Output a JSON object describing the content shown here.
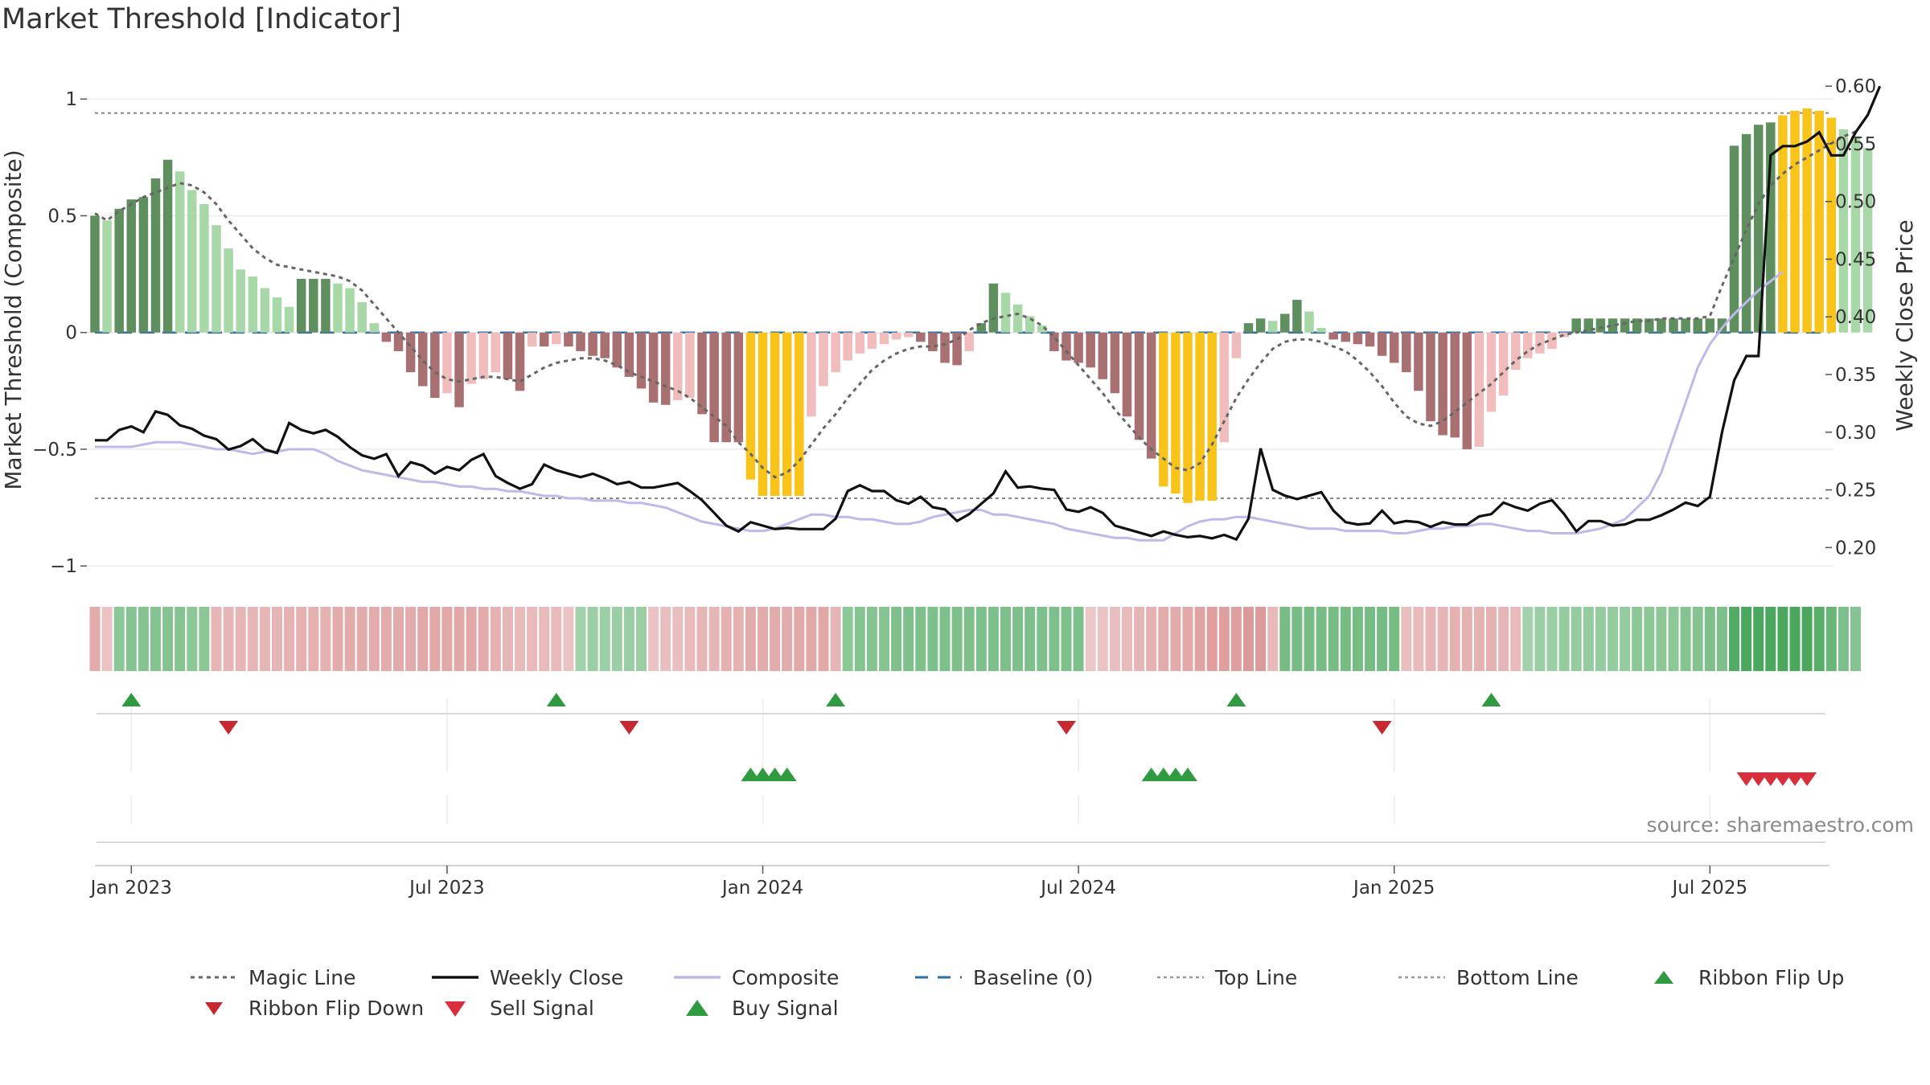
{
  "title": "Market Threshold [Indicator]",
  "source": "source: sharemaestro.com",
  "colors": {
    "strong_green": "#5f8f5f",
    "light_green": "#a8d8a8",
    "strong_red": "#a87070",
    "light_red": "#f0bcbc",
    "yellow": "#f8c41a",
    "weekly_close": "#111111",
    "composite": "#c0b8e8",
    "magic_line": "#666666",
    "baseline": "#2b6fa8",
    "signal_green": "#2f9a3f",
    "signal_red": "#d7303c"
  },
  "legend": [
    {
      "key": "magic",
      "label": "Magic Line",
      "icon": "dotted-line-icon"
    },
    {
      "key": "close",
      "label": "Weekly Close",
      "icon": "solid-line-icon"
    },
    {
      "key": "composite",
      "label": "Composite",
      "icon": "lavender-line-icon"
    },
    {
      "key": "baseline",
      "label": "Baseline (0)",
      "icon": "dashed-line-icon"
    },
    {
      "key": "top",
      "label": "Top Line",
      "icon": "dotted-gray-line-icon"
    },
    {
      "key": "bottom",
      "label": "Bottom Line",
      "icon": "dotted-gray-line-icon"
    },
    {
      "key": "flipup",
      "label": "Ribbon Flip Up",
      "icon": "triangle-up-icon"
    },
    {
      "key": "flipdown",
      "label": "Ribbon Flip Down",
      "icon": "triangle-down-icon"
    },
    {
      "key": "sell",
      "label": "Sell Signal",
      "icon": "triangle-down-icon"
    },
    {
      "key": "buy",
      "label": "Buy Signal",
      "icon": "triangle-up-icon"
    }
  ],
  "chart_data": {
    "type": "bar",
    "title": "Market Threshold [Indicator]",
    "ylabel": "Market Threshold (Composite)",
    "y2label": "Weekly Close Price",
    "ylim": [
      -1.02,
      1.08
    ],
    "y2lim": [
      0.18,
      0.605
    ],
    "yticks": [
      {
        "v": 1,
        "label": "1"
      },
      {
        "v": 0.5,
        "label": "0.5"
      },
      {
        "v": 0,
        "label": "0"
      },
      {
        "v": -0.5,
        "label": "−0.5"
      },
      {
        "v": -1,
        "label": "−1"
      }
    ],
    "y2ticks": [
      {
        "v": 0.6,
        "label": "0.60"
      },
      {
        "v": 0.55,
        "label": "0.55"
      },
      {
        "v": 0.5,
        "label": "0.50"
      },
      {
        "v": 0.45,
        "label": "0.45"
      },
      {
        "v": 0.4,
        "label": "0.40"
      },
      {
        "v": 0.35,
        "label": "0.35"
      },
      {
        "v": 0.3,
        "label": "0.30"
      },
      {
        "v": 0.25,
        "label": "0.25"
      },
      {
        "v": 0.2,
        "label": "0.20"
      }
    ],
    "xticks": [
      {
        "i": 3,
        "label": "Jan 2023"
      },
      {
        "i": 29,
        "label": "Jul 2023"
      },
      {
        "i": 55,
        "label": "Jan 2024"
      },
      {
        "i": 81,
        "label": "Jul 2024"
      },
      {
        "i": 107,
        "label": "Jan 2025"
      },
      {
        "i": 133,
        "label": "Jul 2025"
      }
    ],
    "top_line": 0.94,
    "bottom_line": -0.71,
    "baseline": 0,
    "bars": [
      0.5,
      0.48,
      0.53,
      0.57,
      0.58,
      0.66,
      0.74,
      0.69,
      0.61,
      0.55,
      0.46,
      0.36,
      0.27,
      0.24,
      0.19,
      0.15,
      0.11,
      0.23,
      0.23,
      0.23,
      0.21,
      0.19,
      0.13,
      0.04,
      -0.04,
      -0.08,
      -0.17,
      -0.23,
      -0.28,
      -0.26,
      -0.32,
      -0.22,
      -0.2,
      -0.17,
      -0.2,
      -0.25,
      -0.06,
      -0.06,
      -0.05,
      -0.06,
      -0.08,
      -0.1,
      -0.11,
      -0.15,
      -0.19,
      -0.24,
      -0.3,
      -0.31,
      -0.29,
      -0.28,
      -0.35,
      -0.47,
      -0.47,
      -0.47,
      -0.63,
      -0.7,
      -0.7,
      -0.7,
      -0.7,
      -0.36,
      -0.23,
      -0.17,
      -0.12,
      -0.09,
      -0.07,
      -0.05,
      -0.03,
      -0.02,
      -0.04,
      -0.08,
      -0.13,
      -0.14,
      -0.08,
      0.04,
      0.21,
      0.17,
      0.12,
      0.07,
      0.03,
      -0.08,
      -0.12,
      -0.13,
      -0.15,
      -0.2,
      -0.26,
      -0.36,
      -0.46,
      -0.54,
      -0.66,
      -0.69,
      -0.73,
      -0.72,
      -0.72,
      -0.47,
      -0.11,
      0.04,
      0.06,
      0.05,
      0.08,
      0.14,
      0.09,
      0.02,
      -0.03,
      -0.04,
      -0.05,
      -0.06,
      -0.1,
      -0.13,
      -0.17,
      -0.25,
      -0.38,
      -0.44,
      -0.45,
      -0.5,
      -0.49,
      -0.34,
      -0.27,
      -0.16,
      -0.11,
      -0.09,
      -0.07,
      -0.02,
      0.06,
      0.06,
      0.06,
      0.06,
      0.06,
      0.06,
      0.06,
      0.06,
      0.06,
      0.06,
      0.06,
      0.06,
      0.06,
      0.8,
      0.85,
      0.89,
      0.9,
      0.93,
      0.95,
      0.96,
      0.95,
      0.92,
      0.87,
      0.84,
      0.79
    ],
    "magic_line": [
      0.51,
      0.48,
      0.52,
      0.55,
      0.58,
      0.6,
      0.62,
      0.64,
      0.63,
      0.6,
      0.55,
      0.48,
      0.42,
      0.36,
      0.32,
      0.29,
      0.28,
      0.27,
      0.26,
      0.25,
      0.24,
      0.22,
      0.18,
      0.12,
      0.06,
      0.0,
      -0.06,
      -0.12,
      -0.17,
      -0.2,
      -0.21,
      -0.2,
      -0.19,
      -0.19,
      -0.2,
      -0.21,
      -0.18,
      -0.15,
      -0.13,
      -0.12,
      -0.11,
      -0.11,
      -0.12,
      -0.14,
      -0.17,
      -0.19,
      -0.21,
      -0.23,
      -0.25,
      -0.28,
      -0.32,
      -0.36,
      -0.4,
      -0.47,
      -0.52,
      -0.58,
      -0.62,
      -0.6,
      -0.55,
      -0.48,
      -0.41,
      -0.35,
      -0.28,
      -0.22,
      -0.16,
      -0.12,
      -0.09,
      -0.07,
      -0.06,
      -0.06,
      -0.05,
      -0.03,
      0.01,
      0.04,
      0.06,
      0.07,
      0.08,
      0.06,
      0.03,
      -0.02,
      -0.08,
      -0.14,
      -0.2,
      -0.26,
      -0.33,
      -0.39,
      -0.45,
      -0.5,
      -0.54,
      -0.58,
      -0.59,
      -0.56,
      -0.48,
      -0.38,
      -0.28,
      -0.2,
      -0.13,
      -0.07,
      -0.04,
      -0.03,
      -0.03,
      -0.04,
      -0.06,
      -0.08,
      -0.12,
      -0.17,
      -0.23,
      -0.3,
      -0.36,
      -0.39,
      -0.4,
      -0.38,
      -0.34,
      -0.3,
      -0.26,
      -0.22,
      -0.17,
      -0.12,
      -0.08,
      -0.05,
      -0.03,
      -0.01,
      0.0,
      0.01,
      0.02,
      0.03,
      0.04,
      0.05,
      0.05,
      0.06,
      0.06,
      0.06,
      0.06,
      0.07,
      0.2,
      0.32,
      0.44,
      0.55,
      0.63,
      0.68,
      0.72,
      0.75,
      0.78,
      0.81,
      0.84,
      0.86
    ],
    "weekly_close": [
      0.293,
      0.293,
      0.302,
      0.305,
      0.3,
      0.318,
      0.315,
      0.306,
      0.303,
      0.297,
      0.294,
      0.285,
      0.288,
      0.294,
      0.285,
      0.282,
      0.308,
      0.302,
      0.299,
      0.302,
      0.296,
      0.287,
      0.28,
      0.277,
      0.281,
      0.262,
      0.274,
      0.271,
      0.264,
      0.27,
      0.267,
      0.276,
      0.281,
      0.262,
      0.256,
      0.251,
      0.255,
      0.272,
      0.267,
      0.264,
      0.261,
      0.264,
      0.26,
      0.255,
      0.257,
      0.252,
      0.252,
      0.254,
      0.256,
      0.249,
      0.241,
      0.23,
      0.219,
      0.214,
      0.222,
      0.219,
      0.216,
      0.217,
      0.216,
      0.216,
      0.216,
      0.225,
      0.249,
      0.254,
      0.249,
      0.249,
      0.241,
      0.238,
      0.244,
      0.235,
      0.233,
      0.223,
      0.229,
      0.238,
      0.247,
      0.266,
      0.252,
      0.253,
      0.251,
      0.25,
      0.233,
      0.231,
      0.235,
      0.23,
      0.219,
      0.216,
      0.213,
      0.21,
      0.214,
      0.211,
      0.209,
      0.21,
      0.208,
      0.211,
      0.207,
      0.225,
      0.286,
      0.25,
      0.245,
      0.242,
      0.245,
      0.248,
      0.232,
      0.222,
      0.22,
      0.221,
      0.232,
      0.221,
      0.223,
      0.222,
      0.218,
      0.222,
      0.22,
      0.22,
      0.227,
      0.229,
      0.239,
      0.235,
      0.232,
      0.238,
      0.241,
      0.229,
      0.214,
      0.223,
      0.223,
      0.219,
      0.22,
      0.224,
      0.224,
      0.228,
      0.233,
      0.239,
      0.236,
      0.244,
      0.3,
      0.345,
      0.366,
      0.366,
      0.54,
      0.548,
      0.548,
      0.552,
      0.56,
      0.54,
      0.54,
      0.56,
      0.575,
      0.6
    ],
    "composite": [
      -0.49,
      -0.49,
      -0.49,
      -0.49,
      -0.48,
      -0.47,
      -0.47,
      -0.47,
      -0.48,
      -0.49,
      -0.5,
      -0.5,
      -0.51,
      -0.52,
      -0.51,
      -0.51,
      -0.5,
      -0.5,
      -0.5,
      -0.52,
      -0.55,
      -0.57,
      -0.59,
      -0.6,
      -0.61,
      -0.62,
      -0.63,
      -0.64,
      -0.64,
      -0.65,
      -0.66,
      -0.66,
      -0.67,
      -0.67,
      -0.68,
      -0.68,
      -0.69,
      -0.7,
      -0.7,
      -0.71,
      -0.71,
      -0.72,
      -0.72,
      -0.72,
      -0.73,
      -0.73,
      -0.74,
      -0.75,
      -0.77,
      -0.79,
      -0.81,
      -0.82,
      -0.83,
      -0.84,
      -0.85,
      -0.85,
      -0.84,
      -0.82,
      -0.8,
      -0.78,
      -0.78,
      -0.79,
      -0.79,
      -0.8,
      -0.8,
      -0.81,
      -0.82,
      -0.82,
      -0.81,
      -0.79,
      -0.78,
      -0.77,
      -0.76,
      -0.76,
      -0.78,
      -0.78,
      -0.79,
      -0.8,
      -0.81,
      -0.82,
      -0.84,
      -0.85,
      -0.86,
      -0.87,
      -0.88,
      -0.88,
      -0.89,
      -0.89,
      -0.89,
      -0.86,
      -0.83,
      -0.81,
      -0.8,
      -0.8,
      -0.79,
      -0.79,
      -0.8,
      -0.81,
      -0.82,
      -0.83,
      -0.84,
      -0.84,
      -0.84,
      -0.85,
      -0.85,
      -0.85,
      -0.85,
      -0.86,
      -0.86,
      -0.85,
      -0.84,
      -0.84,
      -0.83,
      -0.83,
      -0.82,
      -0.82,
      -0.83,
      -0.84,
      -0.85,
      -0.85,
      -0.86,
      -0.86,
      -0.86,
      -0.85,
      -0.84,
      -0.82,
      -0.8,
      -0.75,
      -0.7,
      -0.6,
      -0.45,
      -0.3,
      -0.15,
      -0.05,
      0.02,
      0.08,
      0.13,
      0.18,
      0.22,
      0.26
    ],
    "ribbon": [
      -0.55,
      -0.3,
      0.45,
      0.5,
      0.5,
      0.5,
      0.5,
      0.5,
      0.45,
      0.45,
      -0.45,
      -0.45,
      -0.45,
      -0.45,
      -0.45,
      -0.45,
      -0.5,
      -0.5,
      -0.5,
      -0.5,
      -0.55,
      -0.55,
      -0.55,
      -0.55,
      -0.55,
      -0.55,
      -0.55,
      -0.6,
      -0.6,
      -0.6,
      -0.6,
      -0.6,
      -0.55,
      -0.5,
      -0.45,
      -0.4,
      -0.4,
      -0.4,
      -0.4,
      -0.3,
      0.3,
      0.35,
      0.35,
      0.35,
      0.35,
      0.35,
      -0.3,
      -0.35,
      -0.35,
      -0.4,
      -0.45,
      -0.45,
      -0.5,
      -0.5,
      -0.55,
      -0.55,
      -0.55,
      -0.55,
      -0.6,
      -0.6,
      -0.6,
      -0.45,
      0.45,
      0.5,
      0.5,
      0.5,
      0.55,
      0.55,
      0.55,
      0.55,
      0.55,
      0.55,
      0.55,
      0.55,
      0.55,
      0.55,
      0.55,
      0.55,
      0.55,
      0.55,
      0.55,
      0.55,
      -0.25,
      -0.3,
      -0.35,
      -0.4,
      -0.45,
      -0.5,
      -0.55,
      -0.55,
      -0.6,
      -0.65,
      -0.7,
      -0.7,
      -0.7,
      -0.75,
      -0.75,
      -0.4,
      0.6,
      0.6,
      0.6,
      0.6,
      0.6,
      0.6,
      0.6,
      0.6,
      0.6,
      0.6,
      -0.35,
      -0.4,
      -0.45,
      -0.45,
      -0.5,
      -0.5,
      -0.5,
      -0.5,
      -0.45,
      -0.4,
      0.3,
      0.35,
      0.35,
      0.4,
      0.4,
      0.4,
      0.4,
      0.4,
      0.4,
      0.45,
      0.45,
      0.45,
      0.45,
      0.5,
      0.5,
      0.55,
      0.55,
      0.85,
      0.9,
      0.9,
      0.9,
      0.9,
      0.9,
      0.9,
      0.8,
      0.7,
      0.55,
      0.5
    ],
    "ribbon_flip_up": [
      3,
      38,
      61,
      94,
      115
    ],
    "ribbon_flip_down": [
      11,
      44,
      80,
      106
    ],
    "buy_signals": [
      54,
      55,
      56,
      57,
      87,
      88,
      89,
      90
    ],
    "sell_signals": [
      136,
      137,
      138,
      139,
      140,
      141
    ]
  }
}
